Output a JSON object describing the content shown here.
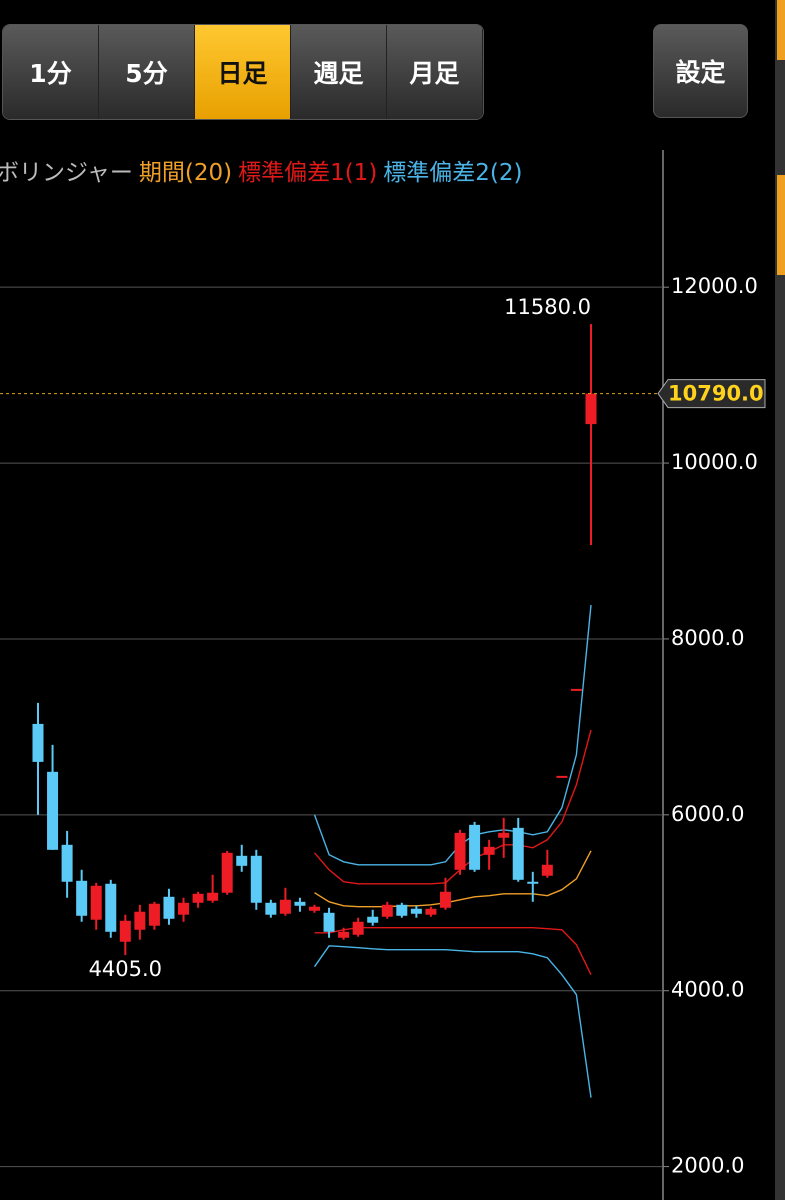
{
  "tabs": [
    "1分",
    "5分",
    "日足",
    "週足",
    "月足"
  ],
  "selected_tab": 2,
  "settings_button": "設定",
  "chart_data": {
    "type": "candlestick",
    "title": "ボリンジャー",
    "categories": [
      null,
      null,
      null,
      null,
      null,
      null,
      null,
      null,
      null,
      null,
      null,
      null,
      null,
      null,
      null,
      null,
      null,
      null,
      null,
      null,
      null,
      null,
      null,
      null,
      null,
      null,
      null,
      null,
      null,
      null,
      null,
      null,
      null,
      null,
      null,
      null,
      null,
      null,
      null
    ],
    "open": [
      7034,
      6489,
      5659,
      5250,
      4807,
      5216,
      4557,
      4693,
      4739,
      5068,
      4864,
      5000,
      5023,
      5114,
      5534,
      5534,
      5000,
      4875,
      5011,
      4909,
      4886,
      4602,
      4636,
      4841,
      4841,
      4977,
      4932,
      4864,
      4943,
      5375,
      5886,
      5545,
      5739,
      5852,
      5239,
      5307,
      6443,
      7432,
      10443
    ],
    "close": [
      6602,
      5602,
      5239,
      4852,
      5193,
      4670,
      4795,
      4898,
      4989,
      4818,
      5000,
      5102,
      5114,
      5568,
      5420,
      5000,
      4864,
      5034,
      4966,
      4955,
      4670,
      4670,
      4784,
      4773,
      4977,
      4852,
      4875,
      4932,
      5125,
      5795,
      5375,
      5636,
      5795,
      5261,
      5216,
      5432,
      6443,
      7432,
      10790
    ],
    "high": [
      7273,
      6795,
      5818,
      5375,
      5227,
      5261,
      4864,
      4977,
      5011,
      5159,
      5057,
      5125,
      5318,
      5591,
      5659,
      5602,
      5034,
      5170,
      5057,
      4977,
      4943,
      4716,
      4830,
      4920,
      5011,
      5000,
      4966,
      4955,
      5284,
      5830,
      5920,
      5716,
      5966,
      5966,
      5352,
      5602,
      6443,
      7432,
      11580
    ],
    "low": [
      6000,
      5602,
      5057,
      4784,
      4693,
      4602,
      4405,
      4580,
      4693,
      4750,
      4784,
      4943,
      5000,
      5091,
      5352,
      4920,
      4830,
      4852,
      4898,
      4886,
      4602,
      4580,
      4614,
      4739,
      4818,
      4830,
      4830,
      4841,
      4920,
      5318,
      5352,
      5375,
      5511,
      5239,
      5011,
      5284,
      6443,
      7432,
      9068
    ],
    "up_color": "#ee1c24",
    "down_color": "#5ccaf7",
    "bands": [
      {
        "name": "期間(20)",
        "color": "#f0a028",
        "values": [
          null,
          null,
          null,
          null,
          null,
          null,
          null,
          null,
          null,
          null,
          null,
          null,
          null,
          null,
          null,
          null,
          null,
          null,
          null,
          5114,
          5011,
          4966,
          4955,
          4955,
          4955,
          4966,
          4966,
          4977,
          5000,
          5034,
          5068,
          5080,
          5102,
          5102,
          5102,
          5080,
          5148,
          5273,
          5591
        ]
      },
      {
        "name": "標準偏差1(1)",
        "color": "#e01818",
        "upper": [
          null,
          null,
          null,
          null,
          null,
          null,
          null,
          null,
          null,
          null,
          null,
          null,
          null,
          null,
          null,
          null,
          null,
          null,
          null,
          5568,
          5375,
          5239,
          5216,
          5216,
          5216,
          5216,
          5216,
          5216,
          5227,
          5375,
          5511,
          5580,
          5659,
          5659,
          5625,
          5716,
          5920,
          6341,
          6966
        ],
        "lower": [
          null,
          null,
          null,
          null,
          null,
          null,
          null,
          null,
          null,
          null,
          null,
          null,
          null,
          null,
          null,
          null,
          null,
          null,
          null,
          4659,
          4659,
          4693,
          4716,
          4716,
          4716,
          4716,
          4716,
          4716,
          4716,
          4716,
          4716,
          4716,
          4716,
          4716,
          4716,
          4705,
          4693,
          4523,
          4182
        ]
      },
      {
        "name": "標準偏差2(2)",
        "color": "#4ab4e6",
        "upper": [
          null,
          null,
          null,
          null,
          null,
          null,
          null,
          null,
          null,
          null,
          null,
          null,
          null,
          null,
          null,
          null,
          null,
          null,
          null,
          6000,
          5545,
          5466,
          5432,
          5432,
          5432,
          5432,
          5432,
          5432,
          5466,
          5659,
          5773,
          5807,
          5830,
          5807,
          5773,
          5807,
          6080,
          6682,
          8386
        ],
        "lower": [
          null,
          null,
          null,
          null,
          null,
          null,
          null,
          null,
          null,
          null,
          null,
          null,
          null,
          null,
          null,
          null,
          null,
          null,
          null,
          4273,
          4511,
          4500,
          4489,
          4477,
          4466,
          4466,
          4466,
          4466,
          4466,
          4455,
          4443,
          4443,
          4443,
          4443,
          4420,
          4375,
          4182,
          3955,
          2784
        ]
      }
    ],
    "ylim": [
      1620,
      13560
    ],
    "yticks": [
      {
        "value": 2000,
        "label": "2000.0"
      },
      {
        "value": 4000,
        "label": "4000.0"
      },
      {
        "value": 6000,
        "label": "6000.0"
      },
      {
        "value": 8000,
        "label": "8000.0"
      },
      {
        "value": 10000,
        "label": "10000.0"
      },
      {
        "value": 12000,
        "label": "12000.0"
      }
    ],
    "grid": true,
    "current_price": {
      "value": 10790,
      "label": "10790.0"
    },
    "high_label": {
      "value": 11580,
      "label": "11580.0"
    },
    "low_label": {
      "value": 4405,
      "label": "4405.0"
    }
  }
}
